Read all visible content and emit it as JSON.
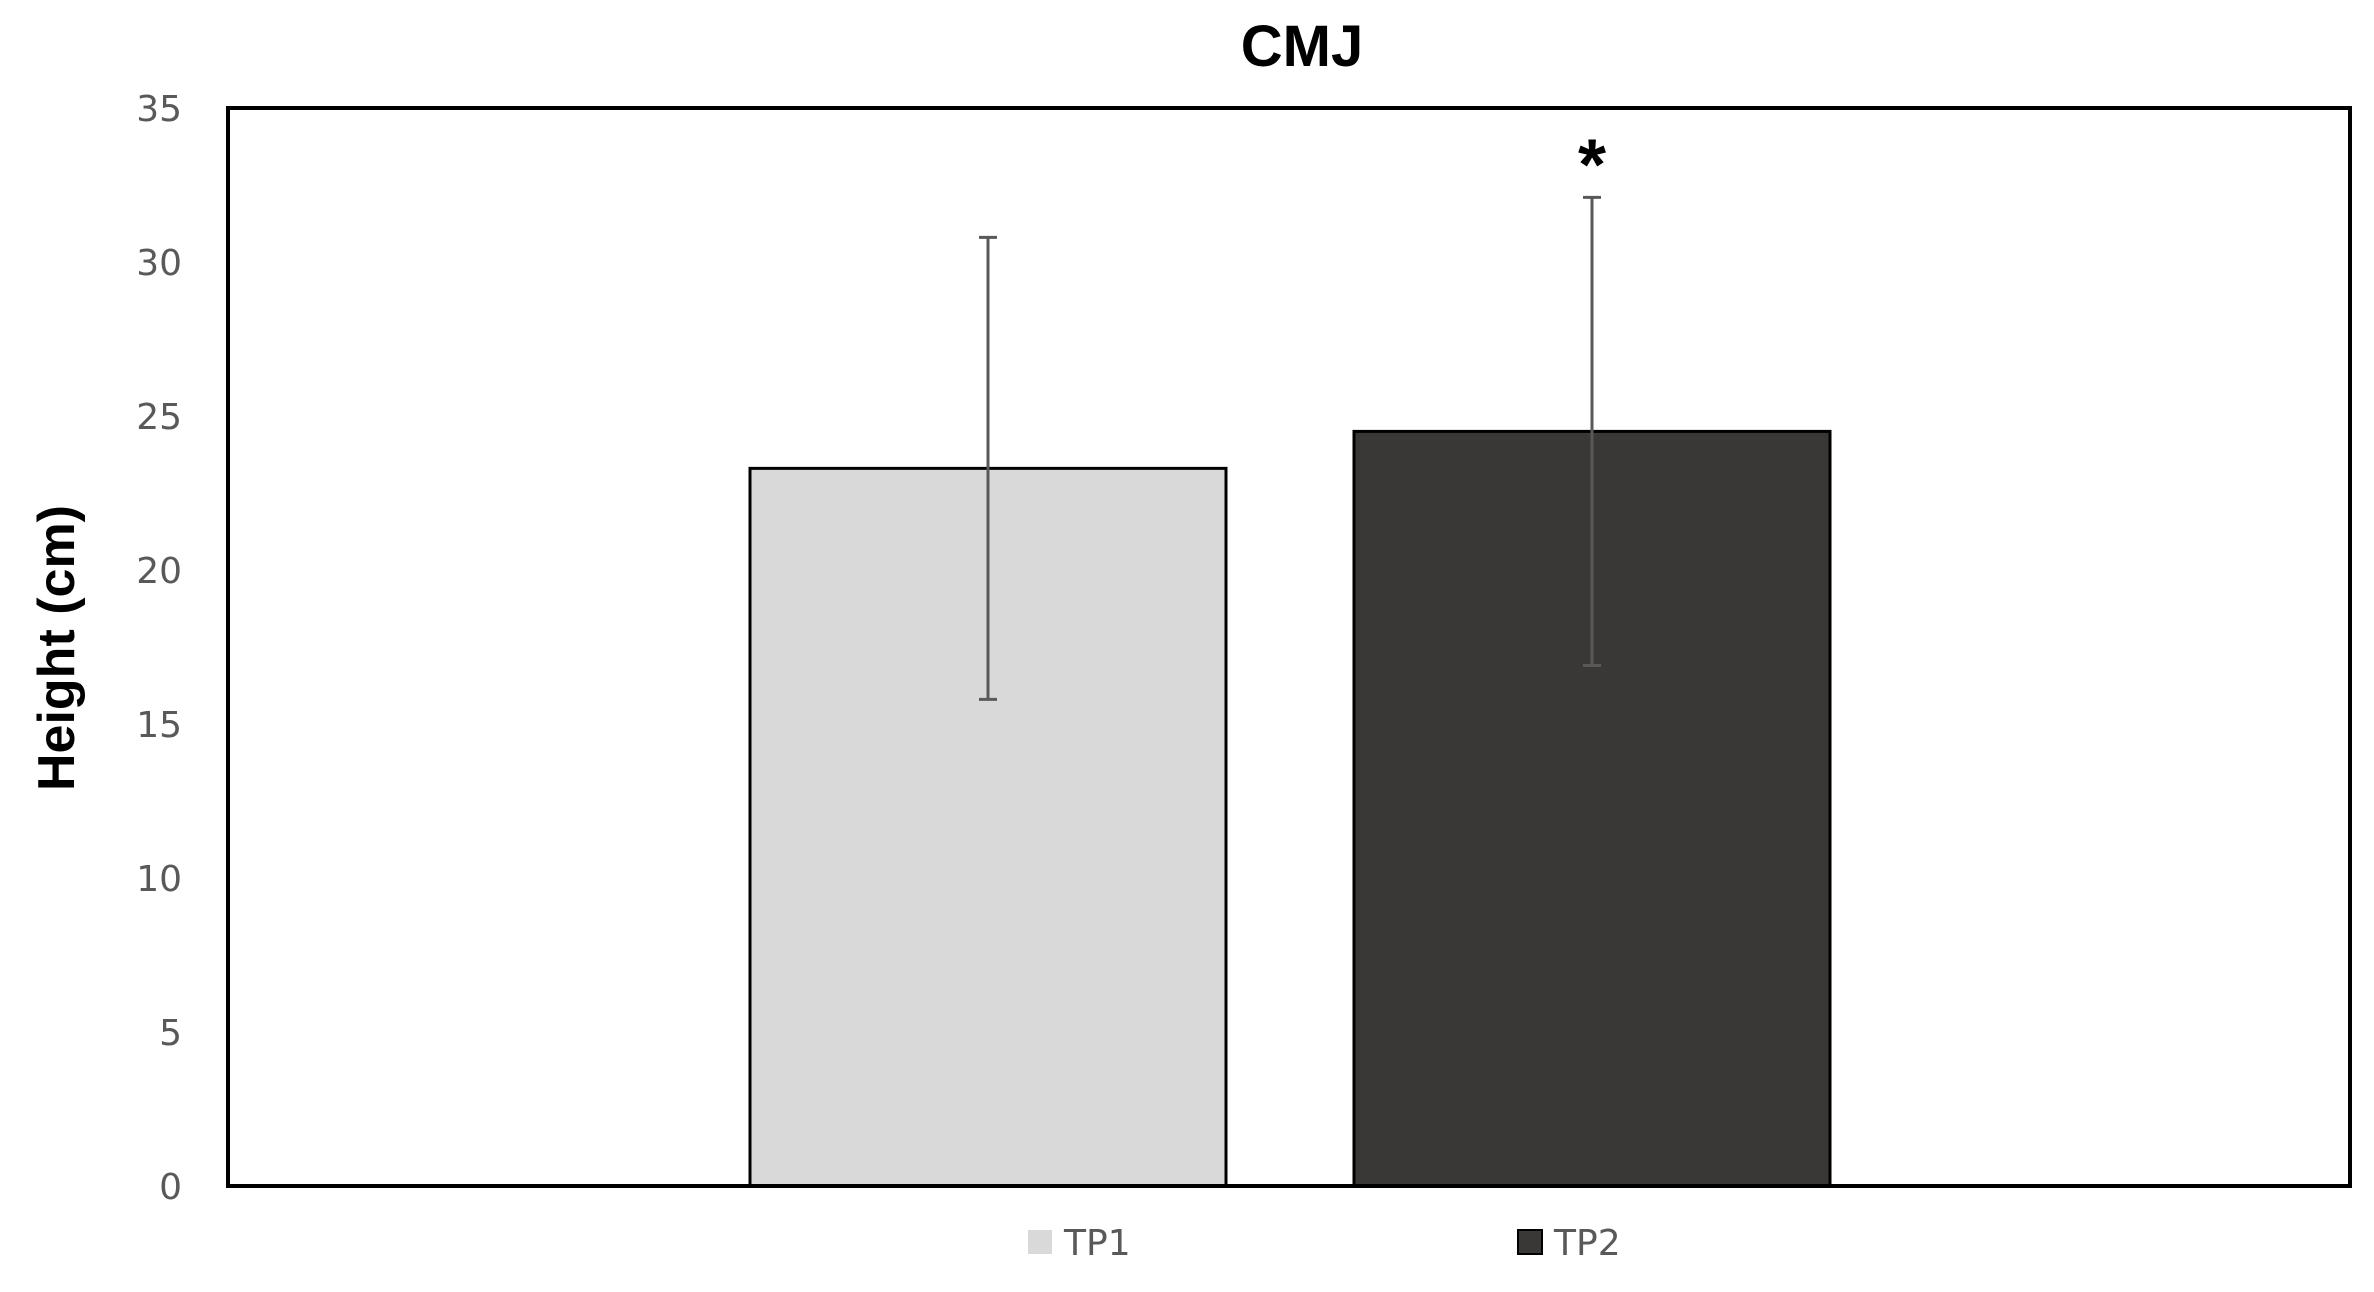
{
  "chart_data": {
    "type": "bar",
    "title": "CMJ",
    "ylabel": "Height (cm)",
    "xlabel": "",
    "ylim": [
      0,
      35
    ],
    "yticks": [
      "0",
      "5",
      "10",
      "15",
      "20",
      "25",
      "30",
      "35"
    ],
    "grid": false,
    "legend_position": "bottom",
    "series": [
      {
        "name": "TP1",
        "value": 23.3,
        "error_low": 15.8,
        "error_high": 30.8,
        "color": "#d9d9d9",
        "annotation": ""
      },
      {
        "name": "TP2",
        "value": 24.5,
        "error_low": 16.9,
        "error_high": 32.1,
        "color": "#3a3836",
        "annotation": "*"
      }
    ],
    "colors": {
      "frame": "#000000",
      "bar_border": "#000000",
      "error_bar": "#595959",
      "tick_text": "#595959"
    }
  }
}
